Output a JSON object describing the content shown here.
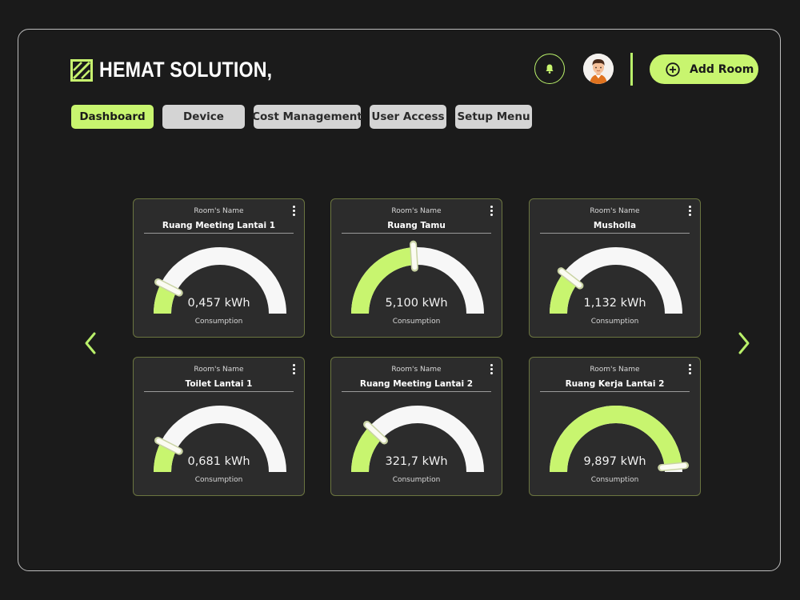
{
  "brand": {
    "name": "HEMAT SOLUTION,",
    "accent": "#c8f56f"
  },
  "header": {
    "notification_icon": "bell-icon",
    "avatar_icon": "user-avatar",
    "add_room_label": "Add Room",
    "add_room_icon": "plus-circle-icon"
  },
  "tabs": [
    {
      "label": "Dashboard",
      "active": true
    },
    {
      "label": "Device",
      "active": false
    },
    {
      "label": "Cost Management",
      "active": false
    },
    {
      "label": "User Access",
      "active": false
    },
    {
      "label": "Setup Menu",
      "active": false
    }
  ],
  "cards": [
    {
      "caption": "Room's Name",
      "room": "Ruang Meeting Lantai 1",
      "value": "0,457 kWh",
      "sublabel": "Consumption",
      "level": 0.15
    },
    {
      "caption": "Room's Name",
      "room": "Ruang Tamu",
      "value": "5,100 kWh",
      "sublabel": "Consumption",
      "level": 0.48
    },
    {
      "caption": "Room's Name",
      "room": "Musholla",
      "value": "1,132 kWh",
      "sublabel": "Consumption",
      "level": 0.21
    },
    {
      "caption": "Room's Name",
      "room": "Toilet Lantai 1",
      "value": "0,681 kWh",
      "sublabel": "Consumption",
      "level": 0.15
    },
    {
      "caption": "Room's Name",
      "room": "Ruang Meeting Lantai 2",
      "value": "321,7 kWh",
      "sublabel": "Consumption",
      "level": 0.24
    },
    {
      "caption": "Room's Name",
      "room": "Ruang Kerja Lantai 2",
      "value": "9,897 kWh",
      "sublabel": "Consumption",
      "level": 0.97
    }
  ],
  "navigation": {
    "prev_icon": "chevron-left-icon",
    "next_icon": "chevron-right-icon"
  }
}
